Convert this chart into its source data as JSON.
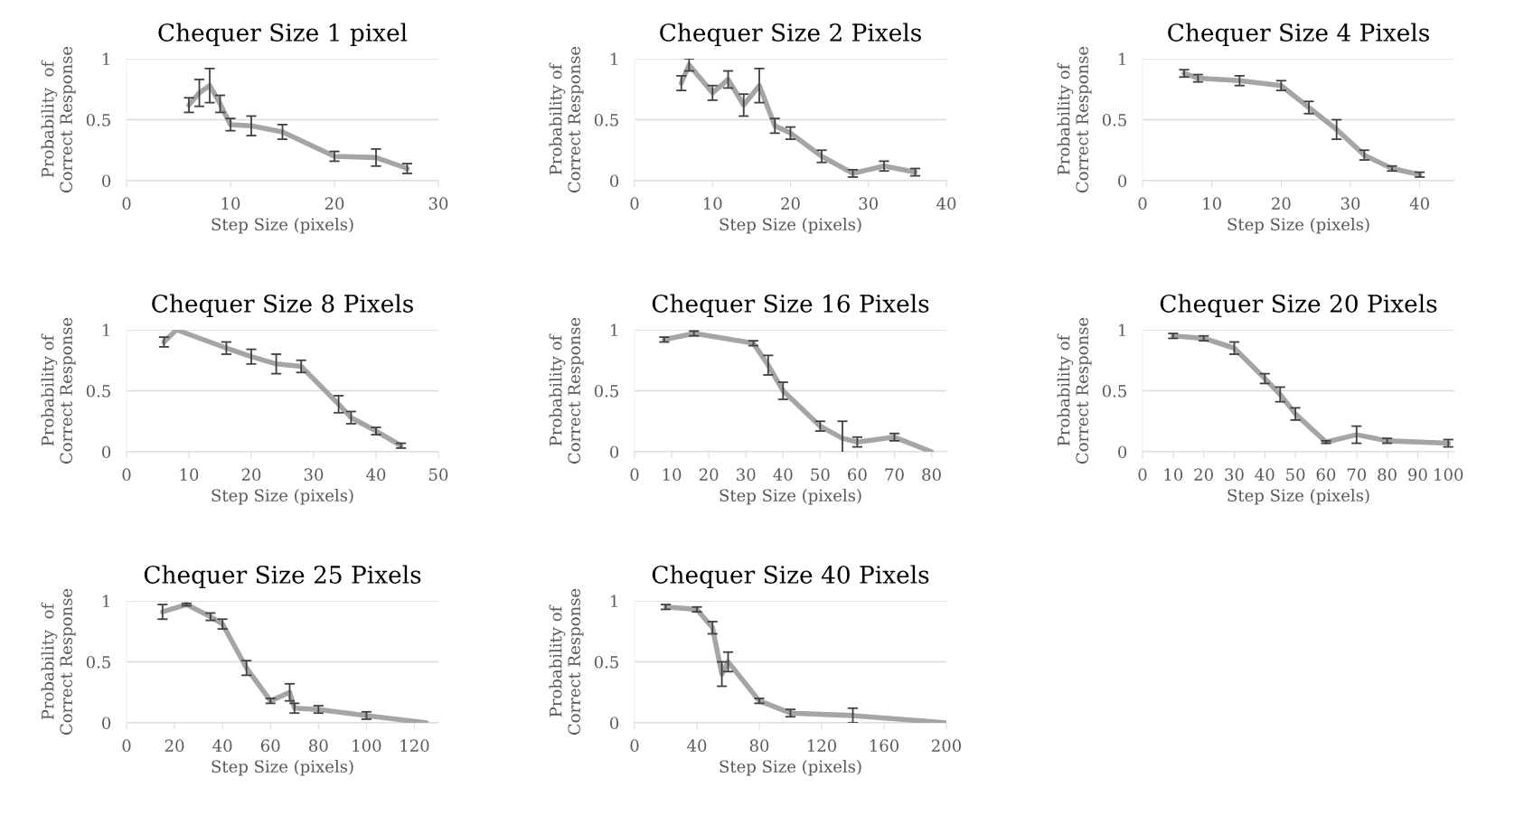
{
  "chart_data": [
    {
      "type": "line",
      "title": "Chequer Size 1 pixel",
      "xlabel": "Step Size (pixels)",
      "ylabel": "Probability  of\nCorrect Response",
      "xlim": [
        0,
        30
      ],
      "xticks": [
        0,
        10,
        20,
        30
      ],
      "ylim": [
        0,
        1
      ],
      "yticks": [
        0,
        0.5,
        1
      ],
      "grid": "y",
      "x": [
        6,
        7,
        8,
        9,
        10,
        12,
        15,
        20,
        24,
        27
      ],
      "series": [
        {
          "color": "#a5a5a5",
          "values": [
            0.62,
            0.72,
            0.78,
            0.63,
            0.46,
            0.45,
            0.4,
            0.2,
            0.19,
            0.1
          ],
          "errors": [
            0.06,
            0.11,
            0.14,
            0.07,
            0.05,
            0.08,
            0.06,
            0.04,
            0.07,
            0.04
          ]
        }
      ]
    },
    {
      "type": "line",
      "title": "Chequer Size 2 Pixels",
      "xlabel": "Step Size (pixels)",
      "ylabel": "Probability of\nCorrect Response",
      "xlim": [
        0,
        40
      ],
      "xticks": [
        0,
        10,
        20,
        30,
        40
      ],
      "ylim": [
        0,
        1
      ],
      "yticks": [
        0,
        0.5,
        1
      ],
      "grid": "y",
      "x": [
        6,
        7,
        10,
        12,
        14,
        16,
        18,
        20,
        24,
        28,
        32,
        36
      ],
      "series": [
        {
          "color": "#a5a5a5",
          "values": [
            0.8,
            0.95,
            0.72,
            0.83,
            0.62,
            0.78,
            0.45,
            0.39,
            0.2,
            0.06,
            0.12,
            0.07
          ],
          "errors": [
            0.06,
            0.05,
            0.06,
            0.07,
            0.09,
            0.14,
            0.06,
            0.05,
            0.05,
            0.03,
            0.04,
            0.03
          ]
        }
      ]
    },
    {
      "type": "line",
      "title": "Chequer Size 4 Pixels",
      "xlabel": "Step Size (pixels)",
      "ylabel": "Probability of\nCorrect Response",
      "xlim": [
        0,
        45
      ],
      "xticks": [
        0,
        10,
        20,
        30,
        40
      ],
      "ylim": [
        0,
        1
      ],
      "yticks": [
        0,
        0.5,
        1
      ],
      "grid": "y",
      "x": [
        6,
        8,
        14,
        20,
        24,
        28,
        32,
        36,
        40
      ],
      "series": [
        {
          "color": "#a5a5a5",
          "values": [
            0.88,
            0.84,
            0.82,
            0.78,
            0.6,
            0.42,
            0.21,
            0.1,
            0.05
          ],
          "errors": [
            0.03,
            0.03,
            0.04,
            0.04,
            0.05,
            0.08,
            0.04,
            0.02,
            0.02
          ]
        }
      ]
    },
    {
      "type": "line",
      "title": "Chequer Size 8 Pixels",
      "xlabel": "Step Size (pixels)",
      "ylabel": "Probability of\nCorrect Response",
      "xlim": [
        0,
        50
      ],
      "xticks": [
        0,
        10,
        20,
        30,
        40,
        50
      ],
      "ylim": [
        0,
        1
      ],
      "yticks": [
        0,
        0.5,
        1
      ],
      "grid": "y",
      "x": [
        6,
        8,
        16,
        20,
        24,
        28,
        34,
        36,
        40,
        44
      ],
      "series": [
        {
          "color": "#a5a5a5",
          "values": [
            0.9,
            1.0,
            0.85,
            0.78,
            0.72,
            0.7,
            0.39,
            0.28,
            0.17,
            0.05
          ],
          "errors": [
            0.04,
            null,
            0.05,
            0.06,
            0.08,
            0.05,
            0.07,
            0.05,
            0.03,
            0.02
          ]
        }
      ]
    },
    {
      "type": "line",
      "title": "Chequer Size 16 Pixels",
      "xlabel": "Step Size (pixels)",
      "ylabel": "Probability of\nCorrect Response",
      "xlim": [
        0,
        84
      ],
      "xticks": [
        0,
        10,
        20,
        30,
        40,
        50,
        60,
        70,
        80
      ],
      "ylim": [
        0,
        1
      ],
      "yticks": [
        0,
        0.5,
        1
      ],
      "grid": "y",
      "x": [
        8,
        16,
        32,
        36,
        40,
        50,
        56,
        60,
        70,
        80
      ],
      "series": [
        {
          "color": "#a5a5a5",
          "values": [
            0.92,
            0.97,
            0.89,
            0.71,
            0.5,
            0.21,
            0.11,
            0.08,
            0.12,
            0.0
          ],
          "errors": [
            0.02,
            0.02,
            0.02,
            0.08,
            0.07,
            0.04,
            0.14,
            0.04,
            0.03,
            null
          ]
        }
      ]
    },
    {
      "type": "line",
      "title": "Chequer Size 20 Pixels",
      "xlabel": "Step Size (pixels)",
      "ylabel": "Probability of\nCorrect Response",
      "xlim": [
        0,
        102
      ],
      "xticks": [
        0,
        10,
        20,
        30,
        40,
        50,
        60,
        70,
        80,
        90,
        100
      ],
      "ylim": [
        0,
        1
      ],
      "yticks": [
        0,
        0.5,
        1
      ],
      "grid": "y",
      "x": [
        10,
        20,
        30,
        40,
        45,
        50,
        60,
        70,
        80,
        100
      ],
      "series": [
        {
          "color": "#a5a5a5",
          "values": [
            0.95,
            0.93,
            0.85,
            0.6,
            0.47,
            0.31,
            0.08,
            0.14,
            0.09,
            0.07
          ],
          "errors": [
            0.02,
            0.02,
            0.05,
            0.04,
            0.06,
            0.05,
            0.01,
            0.07,
            0.02,
            0.03
          ]
        }
      ]
    },
    {
      "type": "line",
      "title": "Chequer Size 25 Pixels",
      "xlabel": "Step Size (pixels)",
      "ylabel": "Probability  of\nCorrect Response",
      "xlim": [
        0,
        130
      ],
      "xticks": [
        0,
        20,
        40,
        60,
        80,
        100,
        120
      ],
      "ylim": [
        0,
        1
      ],
      "yticks": [
        0,
        0.5,
        1
      ],
      "grid": "y",
      "x": [
        15,
        25,
        35,
        40,
        50,
        60,
        68,
        70,
        80,
        100,
        125
      ],
      "series": [
        {
          "color": "#a5a5a5",
          "values": [
            0.91,
            0.97,
            0.87,
            0.81,
            0.45,
            0.18,
            0.25,
            0.12,
            0.11,
            0.06,
            0.0
          ],
          "errors": [
            0.06,
            0.01,
            0.03,
            0.04,
            0.06,
            0.02,
            0.07,
            0.04,
            0.03,
            0.03,
            null
          ]
        }
      ]
    },
    {
      "type": "line",
      "title": "Chequer Size 40 Pixels",
      "xlabel": "Step Size (pixels)",
      "ylabel": "Probability of\nCorrect Response",
      "xlim": [
        0,
        200
      ],
      "xticks": [
        0,
        40,
        80,
        120,
        160,
        200
      ],
      "ylim": [
        0,
        1
      ],
      "yticks": [
        0,
        0.5,
        1
      ],
      "grid": "y",
      "x": [
        20,
        40,
        50,
        56,
        60,
        80,
        100,
        140,
        200
      ],
      "series": [
        {
          "color": "#a5a5a5",
          "values": [
            0.95,
            0.93,
            0.78,
            0.4,
            0.5,
            0.18,
            0.08,
            0.06,
            0.0
          ],
          "errors": [
            0.02,
            0.02,
            0.05,
            0.1,
            0.08,
            0.02,
            0.03,
            [
              0.0,
              0.12
            ],
            null
          ]
        }
      ]
    }
  ]
}
